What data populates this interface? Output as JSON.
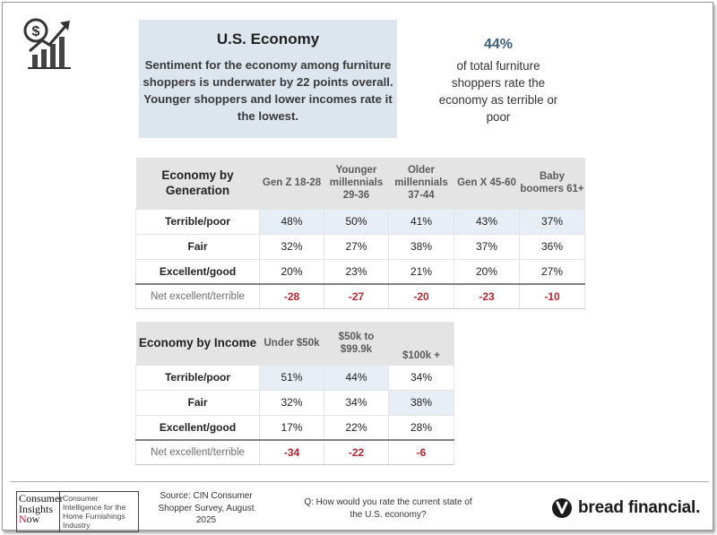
{
  "headline": {
    "title": "U.S. Economy",
    "body": "Sentiment for the economy among furniture shoppers is underwater by 22 points overall. Younger shoppers and lower incomes rate it the lowest."
  },
  "stat": {
    "value": "44%",
    "text": "of total furniture shoppers rate the economy as terrible or poor"
  },
  "generation_table": {
    "title": "Economy by Generation",
    "columns": [
      "Gen Z 18-28",
      "Younger millennials 29-36",
      "Older millennials 37-44",
      "Gen X 45-60",
      "Baby boomers 61+"
    ],
    "rows": [
      {
        "label": "Terrible/poor",
        "values": [
          "48%",
          "50%",
          "41%",
          "43%",
          "37%"
        ]
      },
      {
        "label": "Fair",
        "values": [
          "32%",
          "27%",
          "38%",
          "37%",
          "36%"
        ]
      },
      {
        "label": "Excellent/good",
        "values": [
          "20%",
          "23%",
          "21%",
          "20%",
          "27%"
        ]
      },
      {
        "label": "Net excellent/terrible",
        "values": [
          "-28",
          "-27",
          "-20",
          "-23",
          "-10"
        ]
      }
    ]
  },
  "income_table": {
    "title": "Economy by Income",
    "columns": [
      "Under $50k",
      "$50k to $99.9k",
      "$100k +"
    ],
    "rows": [
      {
        "label": "Terrible/poor",
        "values": [
          "51%",
          "44%",
          "34%"
        ]
      },
      {
        "label": "Fair",
        "values": [
          "32%",
          "34%",
          "38%"
        ]
      },
      {
        "label": "Excellent/good",
        "values": [
          "17%",
          "22%",
          "28%"
        ]
      },
      {
        "label": "Net excellent/terrible",
        "values": [
          "-34",
          "-22",
          "-6"
        ]
      }
    ]
  },
  "footer": {
    "cin_logo_text": "Consumer Insights Now",
    "cin_tagline": "Consumer Intelligence for the Home Furnishings Industry",
    "source": "Source: CIN Consumer Shopper Survey, August 2025",
    "question": "Q: How would you rate the current state of the U.S. economy?",
    "brand": "bread financial."
  },
  "icons": {
    "top_left": "dollar-growth-chart-icon",
    "brand": "bread-financial-logo-icon"
  },
  "colors": {
    "headline_bg": "#dde5ee",
    "header_bg": "#e4e4e4",
    "highlight_cell": "#e8eef5",
    "negative_value": "#b5262e",
    "stat_value": "#3d5f82"
  }
}
